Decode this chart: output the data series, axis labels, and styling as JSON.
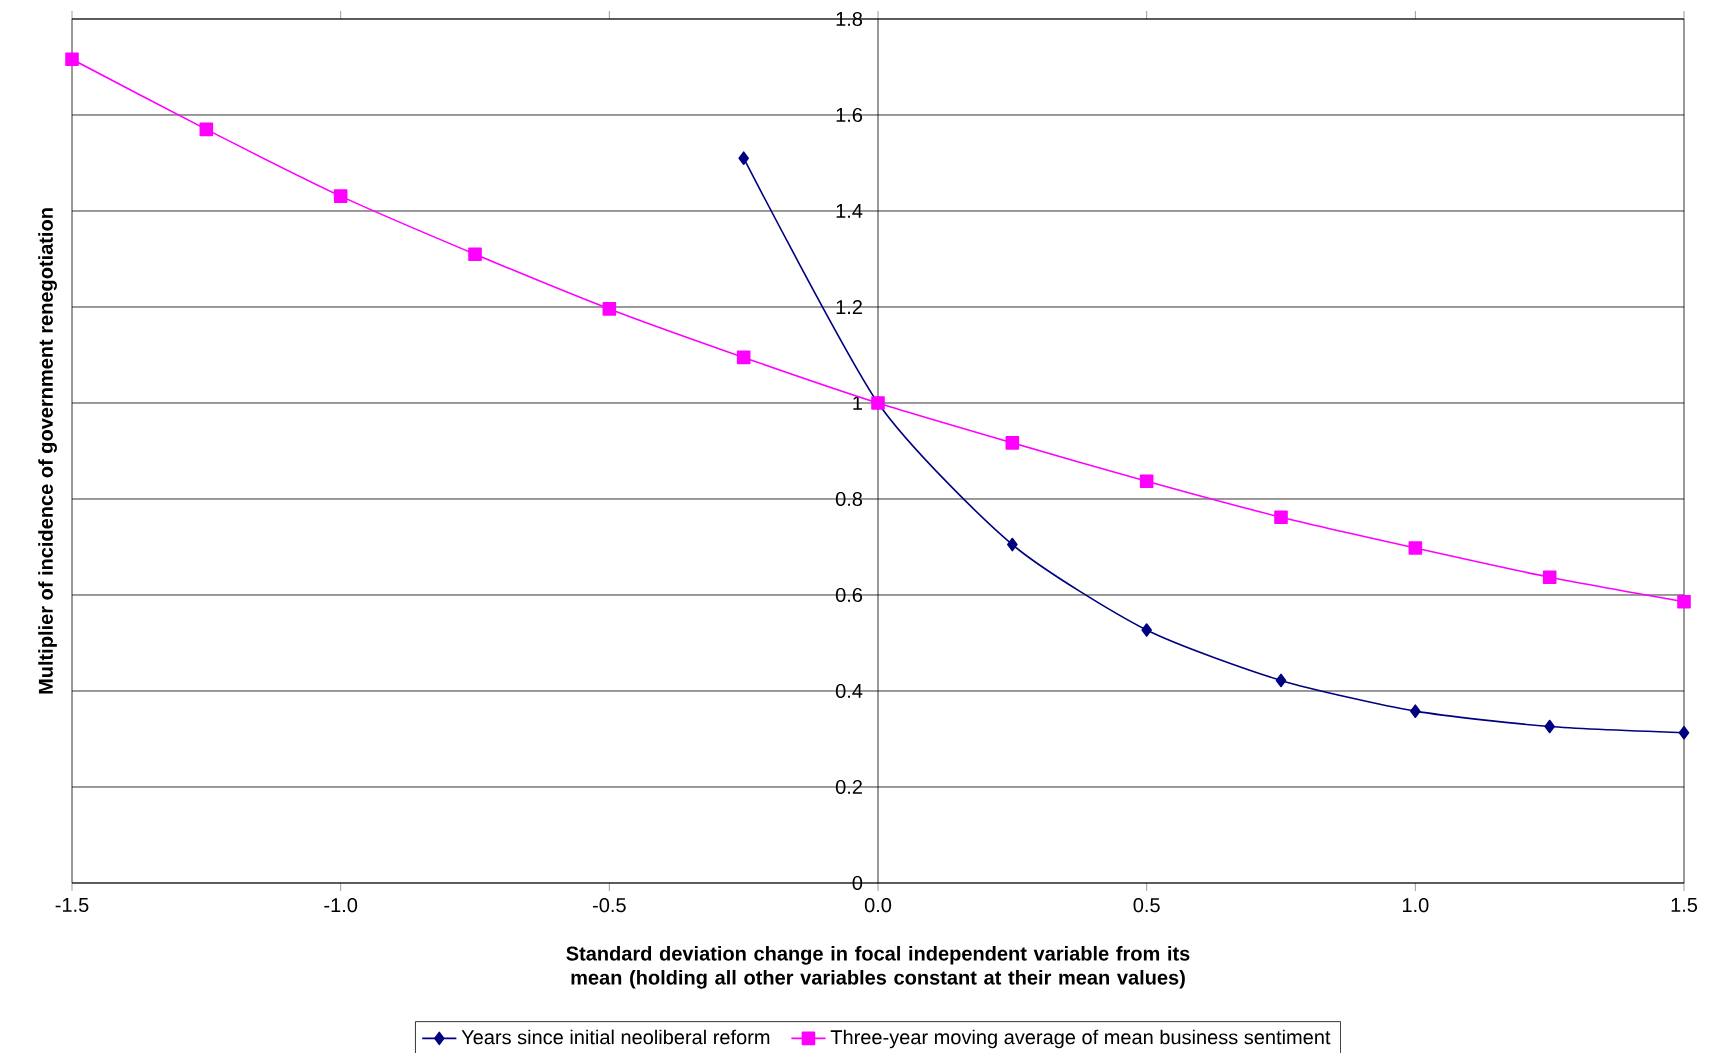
{
  "chart_data": {
    "type": "line",
    "xlabel": "Standard deviation change in focal independent variable from its mean (holding all other variables constant at their mean values)",
    "ylabel": "Multiplier of incidence of government renegotiation",
    "x": [
      -1.5,
      -1.25,
      -1.0,
      -0.75,
      -0.5,
      -0.25,
      0,
      0.25,
      0.5,
      0.75,
      1.0,
      1.25,
      1.5
    ],
    "series": [
      {
        "name": "Years since initial neoliberal reform",
        "color": "#000080",
        "marker": "diamond",
        "values": [
          null,
          null,
          null,
          null,
          null,
          1.51,
          1.0,
          0.705,
          0.527,
          0.422,
          0.358,
          0.326,
          0.313
        ]
      },
      {
        "name": "Three-year moving average of mean business sentiment",
        "color": "#ff00ff",
        "marker": "square",
        "values": [
          1.716,
          1.57,
          1.431,
          1.31,
          1.196,
          1.095,
          1.0,
          0.917,
          0.837,
          0.762,
          0.698,
          0.637,
          0.586
        ]
      }
    ],
    "xlim": [
      -1.5,
      1.5
    ],
    "ylim": [
      0,
      1.8
    ],
    "xticks": [
      {
        "value": -1.5,
        "label": "-1.5"
      },
      {
        "value": -1.0,
        "label": "-1.0"
      },
      {
        "value": -0.5,
        "label": "-0.5"
      },
      {
        "value": 0,
        "label": "0.0"
      },
      {
        "value": 0.5,
        "label": "0.5"
      },
      {
        "value": 1.0,
        "label": "1.0"
      },
      {
        "value": 1.5,
        "label": "1.5"
      }
    ],
    "yticks": [
      0,
      0.2,
      0.4,
      0.6,
      0.8,
      1,
      1.2,
      1.4,
      1.6,
      1.8
    ],
    "grid": "y",
    "legend": "bottom",
    "line_style": "solid"
  }
}
